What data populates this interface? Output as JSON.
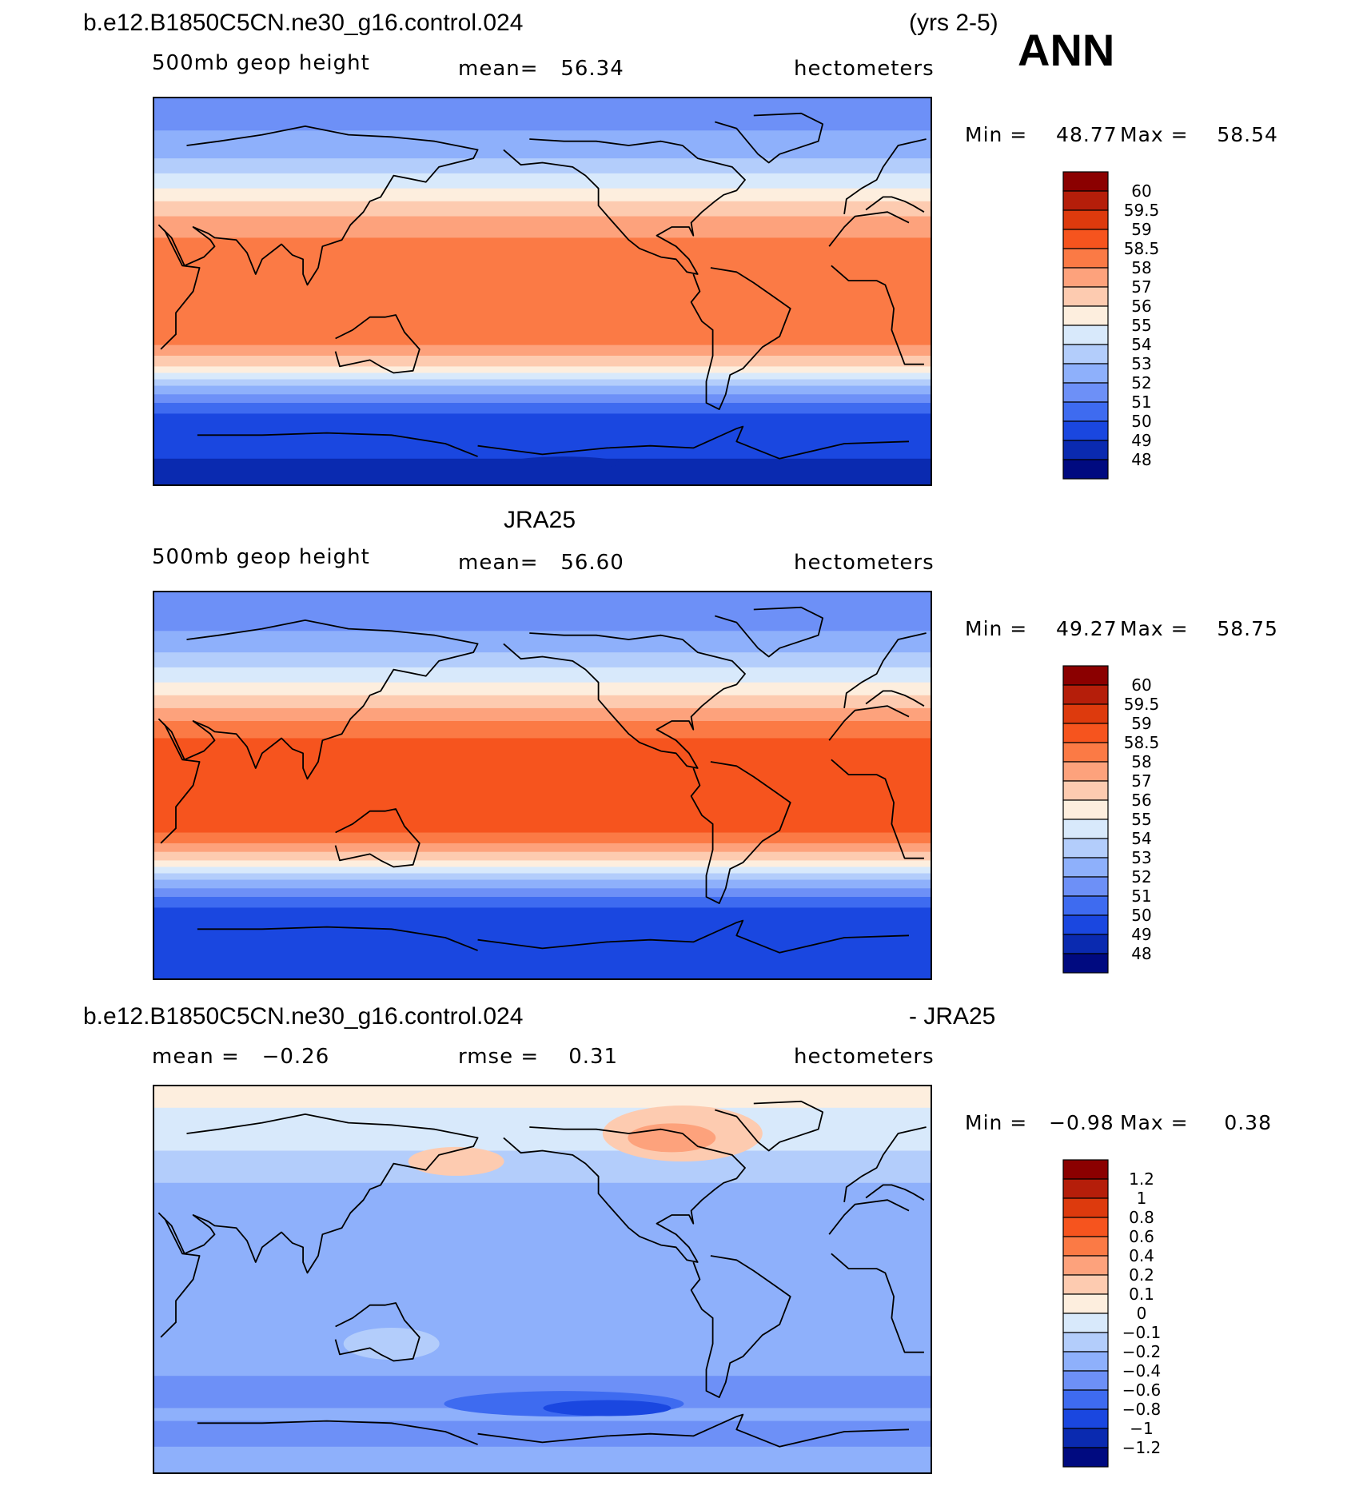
{
  "header": {
    "case_name": "b.e12.B1850C5CN.ne30_g16.control.024",
    "years": "(yrs 2-5)",
    "season": "ANN"
  },
  "colors": {
    "land_outline": "#000000"
  },
  "chart_data": [
    {
      "type": "heatmap",
      "title": "b.e12.B1850C5CN.ne30_g16.control.024",
      "variable_label": "500mb geop height",
      "mean_text": "mean=   56.34",
      "units": "hectometers",
      "min_text": "Min =    48.77",
      "max_text": "Max =    58.54",
      "min": 48.77,
      "max": 58.54,
      "mean": 56.34,
      "colorbar": {
        "levels": [
          "60",
          "59.5",
          "59",
          "58.5",
          "58",
          "57",
          "56",
          "55",
          "54",
          "53",
          "52",
          "51",
          "50",
          "49",
          "48"
        ],
        "colors": [
          "#8b0000",
          "#b51e0a",
          "#dd3a0d",
          "#f6541e",
          "#fb7a45",
          "#fda27c",
          "#fdcbb0",
          "#fdeede",
          "#d8e9fb",
          "#b3cdfb",
          "#8eb0fb",
          "#6d90f7",
          "#3e6bf0",
          "#1a47e0",
          "#0a2ab0",
          "#000a80"
        ]
      },
      "bands": [
        {
          "lat": 90,
          "color": "#6d90f7"
        },
        {
          "lat": 75,
          "color": "#8eb0fb"
        },
        {
          "lat": 62,
          "color": "#b3cdfb"
        },
        {
          "lat": 55,
          "color": "#d8e9fb"
        },
        {
          "lat": 48,
          "color": "#fdeede"
        },
        {
          "lat": 42,
          "color": "#fdcbb0"
        },
        {
          "lat": 35,
          "color": "#fda27c"
        },
        {
          "lat": 25,
          "color": "#fb7a45"
        },
        {
          "lat": -25,
          "color": "#fda27c"
        },
        {
          "lat": -30,
          "color": "#fdcbb0"
        },
        {
          "lat": -35,
          "color": "#fdeede"
        },
        {
          "lat": -38,
          "color": "#d8e9fb"
        },
        {
          "lat": -41,
          "color": "#b3cdfb"
        },
        {
          "lat": -44,
          "color": "#8eb0fb"
        },
        {
          "lat": -48,
          "color": "#6d90f7"
        },
        {
          "lat": -52,
          "color": "#3e6bf0"
        },
        {
          "lat": -57,
          "color": "#1a47e0"
        },
        {
          "lat": -65,
          "color": "#1a47e0"
        },
        {
          "lat": -78,
          "color": "#0a2ab0"
        }
      ]
    },
    {
      "type": "heatmap",
      "title": "JRA25",
      "variable_label": "500mb geop height",
      "mean_text": "mean=   56.60",
      "units": "hectometers",
      "min_text": "Min =    49.27",
      "max_text": "Max =    58.75",
      "min": 49.27,
      "max": 58.75,
      "mean": 56.6,
      "colorbar": {
        "levels": [
          "60",
          "59.5",
          "59",
          "58.5",
          "58",
          "57",
          "56",
          "55",
          "54",
          "53",
          "52",
          "51",
          "50",
          "49",
          "48"
        ],
        "colors": [
          "#8b0000",
          "#b51e0a",
          "#dd3a0d",
          "#f6541e",
          "#fb7a45",
          "#fda27c",
          "#fdcbb0",
          "#fdeede",
          "#d8e9fb",
          "#b3cdfb",
          "#8eb0fb",
          "#6d90f7",
          "#3e6bf0",
          "#1a47e0",
          "#0a2ab0",
          "#000a80"
        ]
      },
      "bands": [
        {
          "lat": 90,
          "color": "#6d90f7"
        },
        {
          "lat": 72,
          "color": "#8eb0fb"
        },
        {
          "lat": 62,
          "color": "#b3cdfb"
        },
        {
          "lat": 55,
          "color": "#d8e9fb"
        },
        {
          "lat": 48,
          "color": "#fdeede"
        },
        {
          "lat": 42,
          "color": "#fdcbb0"
        },
        {
          "lat": 36,
          "color": "#fda27c"
        },
        {
          "lat": 30,
          "color": "#fb7a45"
        },
        {
          "lat": 22,
          "color": "#f6541e"
        },
        {
          "lat": -22,
          "color": "#fb7a45"
        },
        {
          "lat": -27,
          "color": "#fda27c"
        },
        {
          "lat": -31,
          "color": "#fdcbb0"
        },
        {
          "lat": -35,
          "color": "#fdeede"
        },
        {
          "lat": -38,
          "color": "#d8e9fb"
        },
        {
          "lat": -41,
          "color": "#b3cdfb"
        },
        {
          "lat": -44,
          "color": "#8eb0fb"
        },
        {
          "lat": -48,
          "color": "#6d90f7"
        },
        {
          "lat": -52,
          "color": "#3e6bf0"
        },
        {
          "lat": -57,
          "color": "#1a47e0"
        },
        {
          "lat": -75,
          "color": "#1a47e0"
        }
      ]
    },
    {
      "type": "heatmap",
      "title": "b.e12.B1850C5CN.ne30_g16.control.024",
      "title_suffix": "- JRA25",
      "mean_text": "mean =   −0.26",
      "rmse_text": "rmse =    0.31",
      "units": "hectometers",
      "min_text": "Min =   −0.98",
      "max_text": "Max =     0.38",
      "min": -0.98,
      "max": 0.38,
      "mean": -0.26,
      "rmse": 0.31,
      "colorbar": {
        "levels": [
          "1.2",
          "1",
          "0.8",
          "0.6",
          "0.4",
          "0.2",
          "0.1",
          "0",
          "−0.1",
          "−0.2",
          "−0.4",
          "−0.6",
          "−0.8",
          "−1",
          "−1.2"
        ],
        "colors": [
          "#8b0000",
          "#b51e0a",
          "#dd3a0d",
          "#f6541e",
          "#fb7a45",
          "#fda27c",
          "#fdcbb0",
          "#fdeede",
          "#d8e9fb",
          "#b3cdfb",
          "#8eb0fb",
          "#6d90f7",
          "#3e6bf0",
          "#1a47e0",
          "#0a2ab0",
          "#000a80"
        ]
      },
      "bands": [
        {
          "lat": 90,
          "color": "#fdeede"
        },
        {
          "lat": 80,
          "color": "#d8e9fb"
        },
        {
          "lat": 60,
          "color": "#b3cdfb"
        },
        {
          "lat": 45,
          "color": "#8eb0fb"
        },
        {
          "lat": -45,
          "color": "#6d90f7"
        },
        {
          "lat": -60,
          "color": "#8eb0fb"
        },
        {
          "lat": -66,
          "color": "#6d90f7"
        },
        {
          "lat": -78,
          "color": "#8eb0fb"
        }
      ]
    }
  ]
}
